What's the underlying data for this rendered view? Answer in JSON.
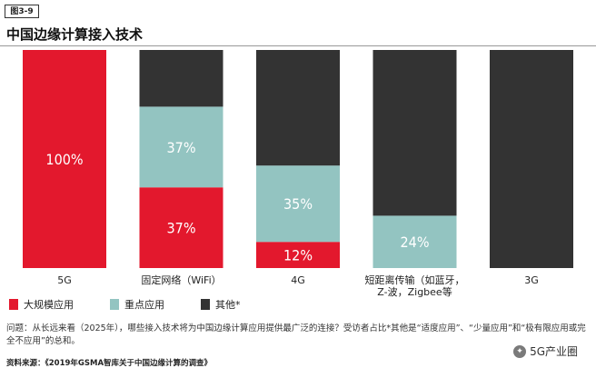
{
  "figure_tag": "图3-9",
  "title": "中国边缘计算接入技术",
  "legend": [
    {
      "label": "大规模应用",
      "color": "#e3182d"
    },
    {
      "label": "重点应用",
      "color": "#93c4c1"
    },
    {
      "label": "其他*",
      "color": "#333333"
    }
  ],
  "question_text": "问题：从长远来看（2025年），哪些接入技术将为中国边缘计算应用提供最广泛的连接？受访者占比*其他是“适度应用”、“少量应用”和“极有限应用或完全不应用”的总和。",
  "source_text": "资料来源：《2019年GSMA智库关于中国边缘计算的调查》",
  "watermark": "5G产业圈",
  "chart_data": {
    "type": "bar",
    "stacked": true,
    "categories": [
      "5G",
      "固定网络（WiFi）",
      "4G",
      "短距离传输（如蓝牙，Z-波，Zigbee等",
      "3G"
    ],
    "category_lines": [
      [
        "5G"
      ],
      [
        "固定网络（WiFi）"
      ],
      [
        "4G"
      ],
      [
        "短距离传输（如蓝牙，",
        "Z-波，Zigbee等"
      ],
      [
        "3G"
      ]
    ],
    "series": [
      {
        "name": "大规模应用",
        "color": "#e3182d",
        "values": [
          100,
          37,
          12,
          0,
          0
        ],
        "labels": [
          "100%",
          "37%",
          "12%",
          "",
          ""
        ]
      },
      {
        "name": "重点应用",
        "color": "#93c4c1",
        "values": [
          0,
          37,
          35,
          24,
          0
        ],
        "labels": [
          "",
          "37%",
          "35%",
          "24%",
          ""
        ]
      },
      {
        "name": "其他*",
        "color": "#333333",
        "values": [
          0,
          26,
          53,
          76,
          100
        ],
        "labels": [
          "",
          "",
          "",
          "",
          ""
        ]
      }
    ],
    "ylim": [
      0,
      100
    ]
  }
}
